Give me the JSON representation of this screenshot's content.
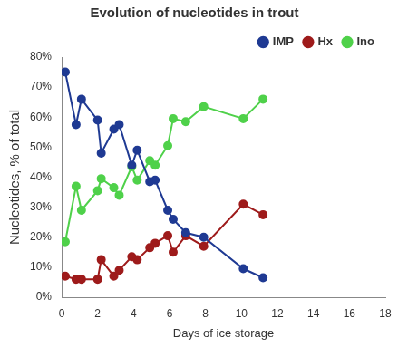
{
  "chart_data": {
    "type": "line",
    "title": "Evolution of nucleotides in trout",
    "x_label": "Days of ice storage",
    "y_label": "Nucleotides, % of total",
    "x": [
      0.2,
      0.8,
      1.1,
      2.0,
      2.2,
      2.9,
      3.2,
      3.9,
      4.2,
      4.9,
      5.2,
      5.9,
      6.2,
      6.9,
      7.9,
      10.1,
      11.2
    ],
    "series": [
      {
        "name": "IMP",
        "color": "#1f3a93",
        "marker": "circle",
        "values": [
          75,
          57.5,
          66,
          59,
          48,
          56,
          57.5,
          44,
          49,
          38.5,
          39,
          29,
          26,
          21.5,
          20,
          9.5,
          6.5
        ]
      },
      {
        "name": "Hx",
        "color": "#9e1b1b",
        "marker": "circle",
        "values": [
          7,
          6,
          6,
          6,
          12.5,
          7,
          9,
          13.5,
          12.5,
          16.5,
          18,
          20.5,
          15,
          20.5,
          17,
          31,
          27.5
        ]
      },
      {
        "name": "Ino",
        "color": "#4fd14a",
        "marker": "circle",
        "values": [
          18.5,
          37,
          29,
          35.5,
          39.5,
          36.5,
          34,
          43.5,
          39,
          45.5,
          44,
          50.5,
          59.5,
          58.5,
          63.5,
          59.5,
          66
        ]
      }
    ],
    "xlim": [
      0,
      18
    ],
    "xticks": [
      0,
      2,
      4,
      6,
      8,
      10,
      12,
      14,
      16,
      18
    ],
    "ylim": [
      0,
      80
    ],
    "yticks": [
      {
        "value": 0,
        "label": "0%"
      },
      {
        "value": 10,
        "label": "10%"
      },
      {
        "value": 20,
        "label": "20%"
      },
      {
        "value": 30,
        "label": "30%"
      },
      {
        "value": 40,
        "label": "40%"
      },
      {
        "value": 50,
        "label": "50%"
      },
      {
        "value": 60,
        "label": "60%"
      },
      {
        "value": 70,
        "label": "70%"
      },
      {
        "value": 80,
        "label": "80%"
      }
    ],
    "grid": false,
    "legend": "upper right"
  }
}
